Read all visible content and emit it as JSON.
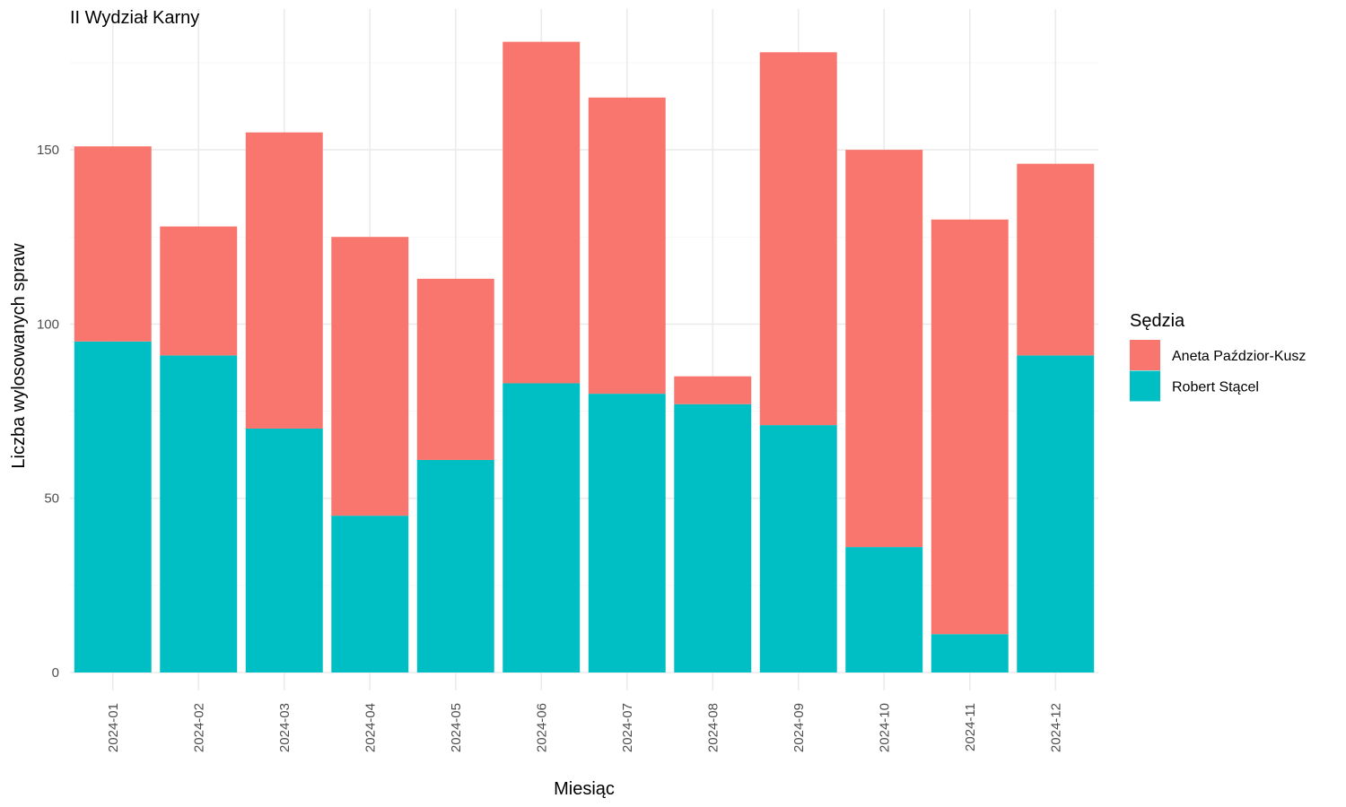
{
  "chart_data": {
    "type": "bar",
    "stacked": true,
    "title": "II Wydział Karny",
    "xlabel": "Miesiąc",
    "ylabel": "Liczba wylosowanych spraw",
    "ylim": [
      0,
      181
    ],
    "yticks": [
      0,
      50,
      100,
      150
    ],
    "grid": true,
    "legend": {
      "title": "Sędzia",
      "placement": "right"
    },
    "categories": [
      "2024-01",
      "2024-02",
      "2024-03",
      "2024-04",
      "2024-05",
      "2024-06",
      "2024-07",
      "2024-08",
      "2024-09",
      "2024-10",
      "2024-11",
      "2024-12"
    ],
    "series": [
      {
        "name": "Robert Stącel",
        "color": "#00BFC4",
        "values": [
          95,
          91,
          70,
          45,
          61,
          83,
          80,
          77,
          71,
          36,
          11,
          91
        ]
      },
      {
        "name": "Aneta Paździor-Kusz",
        "color": "#F8766D",
        "values": [
          56,
          37,
          85,
          80,
          52,
          98,
          85,
          8,
          107,
          114,
          119,
          55
        ]
      }
    ],
    "legend_order": [
      1,
      0
    ]
  }
}
